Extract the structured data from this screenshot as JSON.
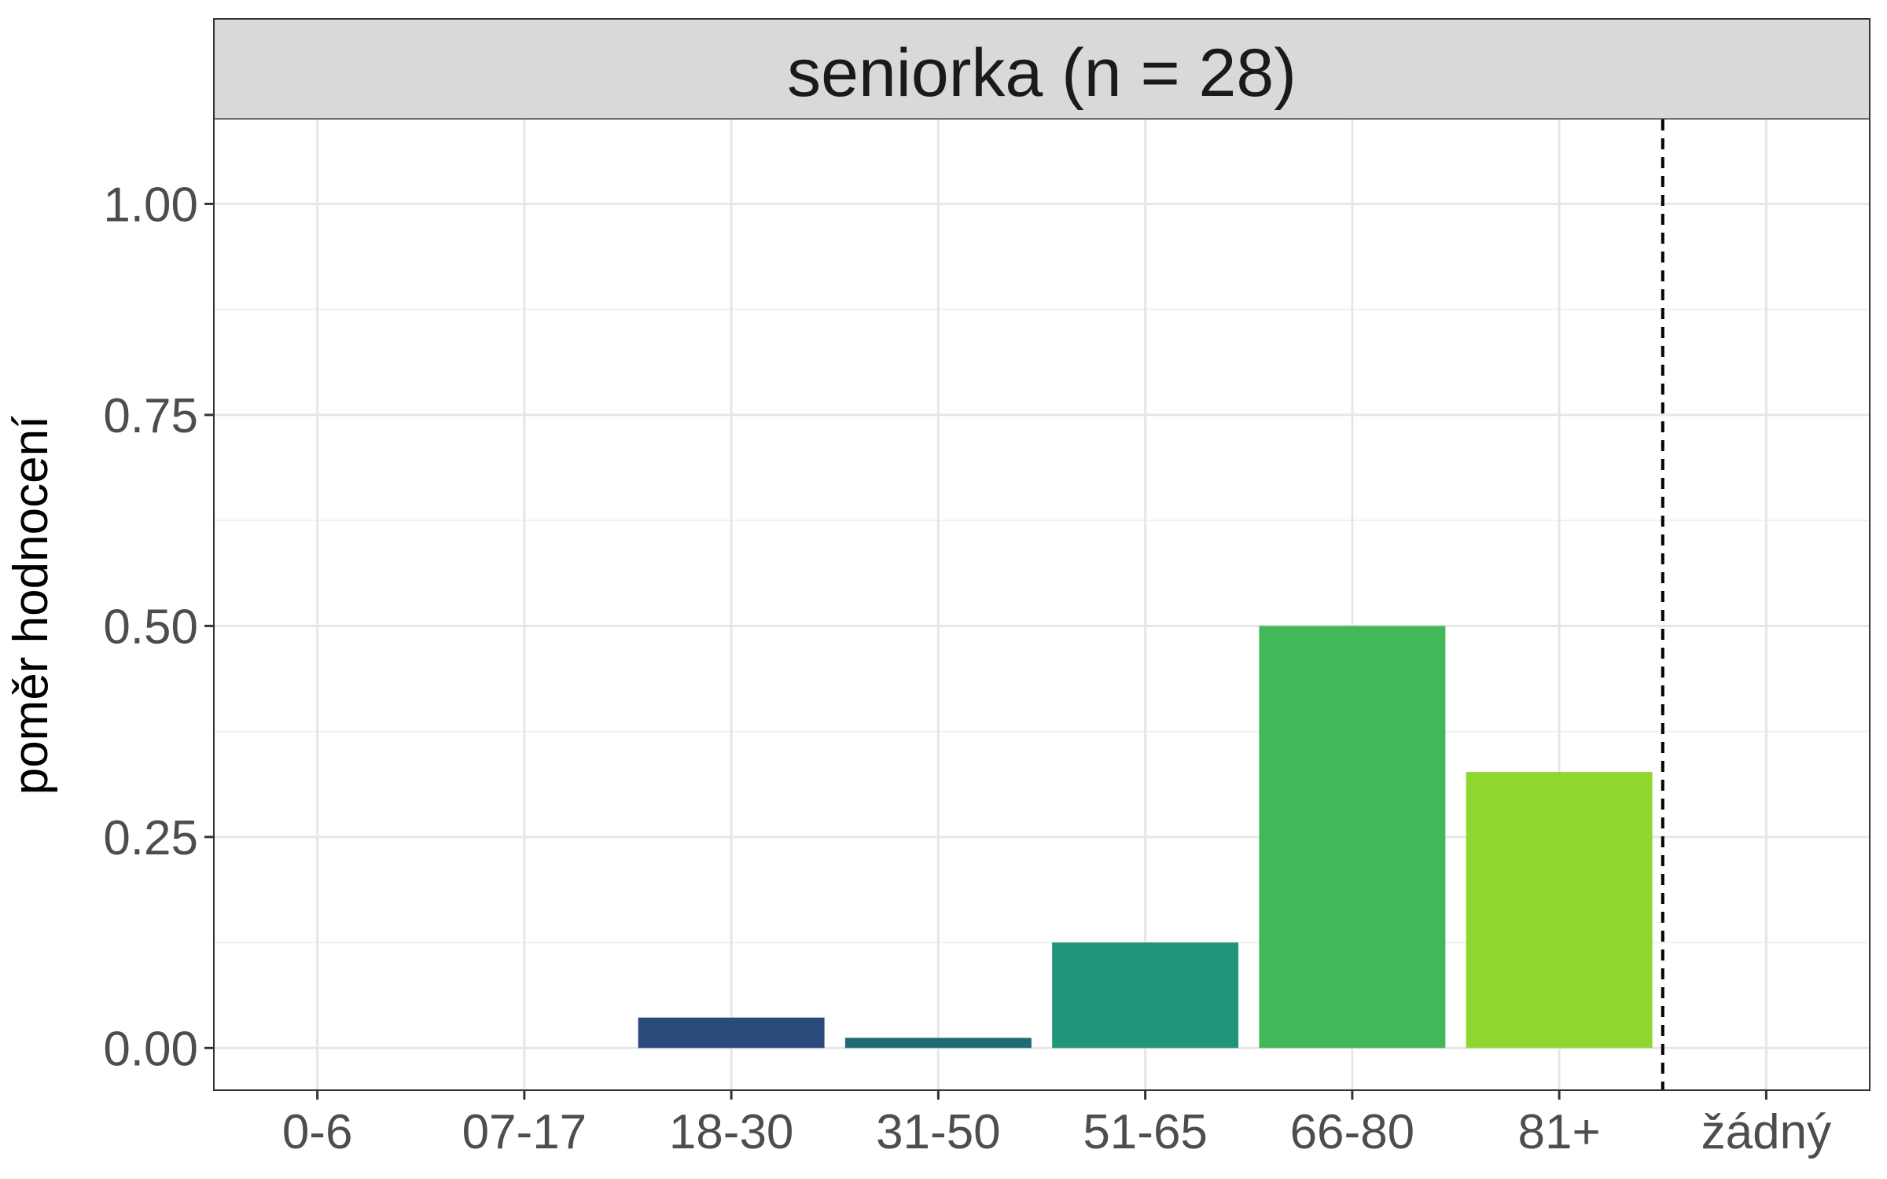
{
  "chart_data": {
    "type": "bar",
    "facet_title": "seniorka (n = 28)",
    "ylabel": "poměr hodnocení",
    "xlabel": "",
    "categories": [
      "0-6",
      "07-17",
      "18-30",
      "31-50",
      "51-65",
      "66-80",
      "81+",
      "žádný"
    ],
    "values": [
      0,
      0,
      0.036,
      0.012,
      0.125,
      0.5,
      0.327,
      0
    ],
    "colors": [
      "#440154",
      "#46327e",
      "#2a4a7b",
      "#206b73",
      "#21957a",
      "#42b85a",
      "#8fd630",
      "#fde725"
    ],
    "ylim": [
      -0.05,
      1.1
    ],
    "yticks": [
      "0.00",
      "0.25",
      "0.50",
      "0.75",
      "1.00"
    ],
    "ytick_values": [
      0,
      0.25,
      0.5,
      0.75,
      1.0
    ],
    "reference_line_between": [
      "81+",
      "žádný"
    ],
    "reference_line_style": "dashed",
    "grid": true,
    "legend": "none"
  }
}
